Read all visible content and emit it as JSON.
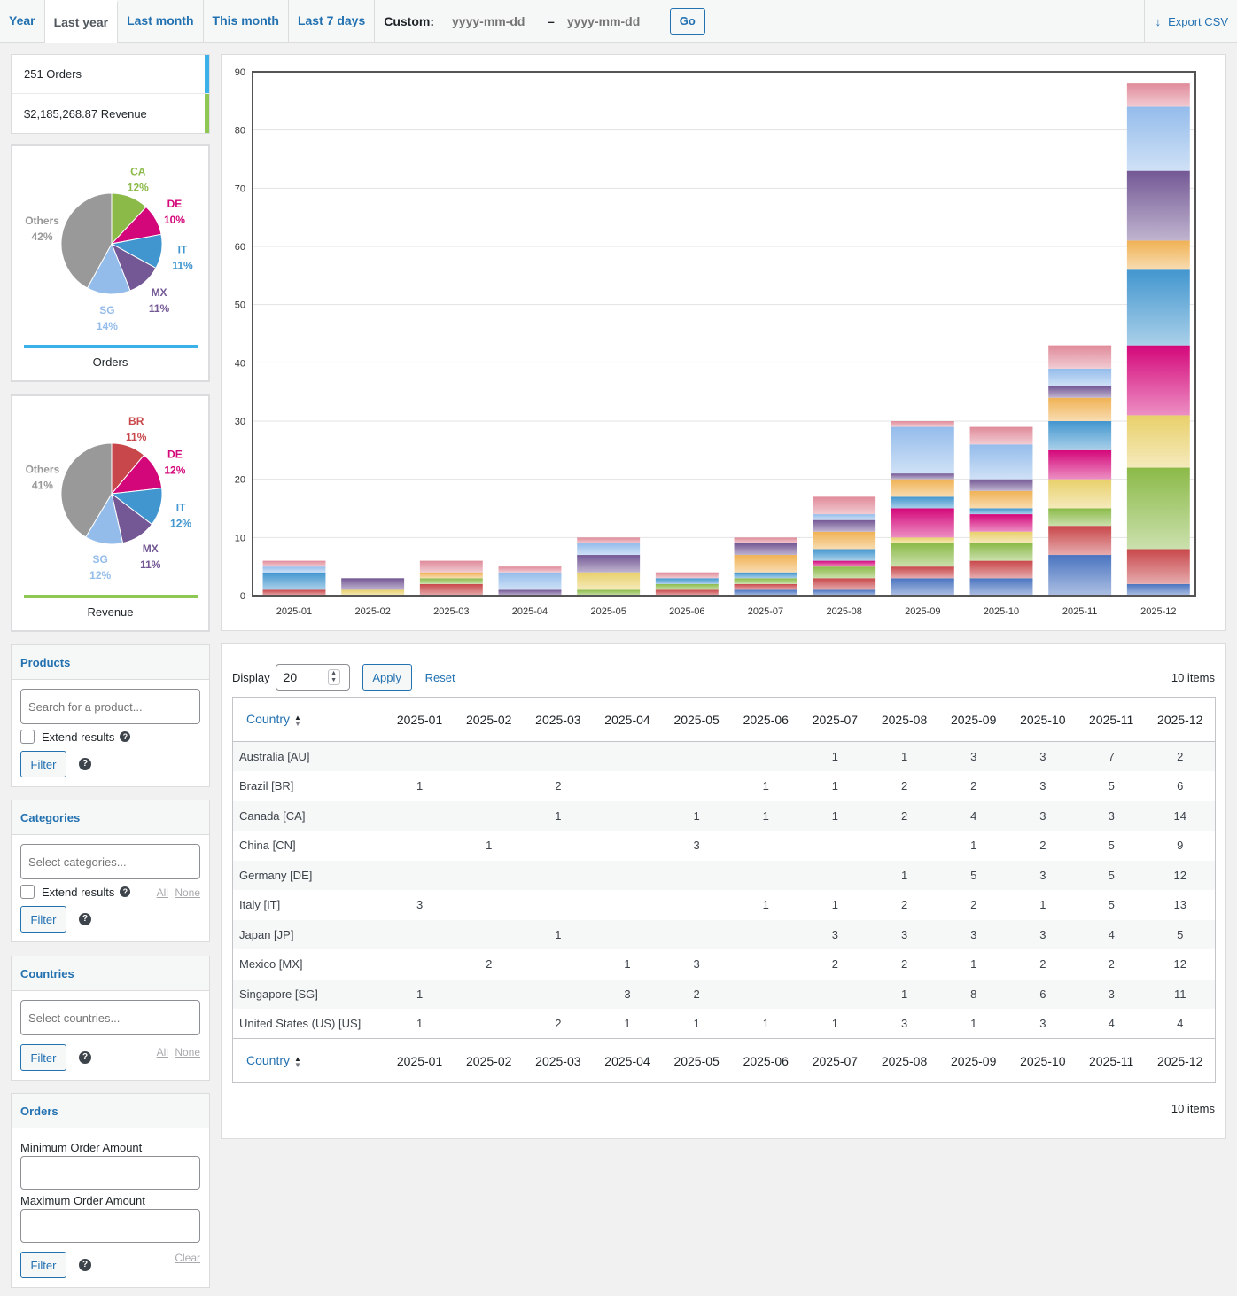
{
  "tabs": [
    "Year",
    "Last year",
    "Last month",
    "This month",
    "Last 7 days"
  ],
  "active_tab": 1,
  "custom": {
    "label": "Custom:",
    "from_placeholder": "yyyy-mm-dd",
    "separator": "–",
    "to_placeholder": "yyyy-mm-dd",
    "go_label": "Go"
  },
  "export_label": "Export CSV",
  "legend": {
    "orders": "251 Orders",
    "revenue": "$2,185,268.87 Revenue",
    "orders_color": "#3ab1e8",
    "revenue_color": "#8fc754"
  },
  "pies": {
    "orders": {
      "caption": "Orders",
      "slices": [
        {
          "label": "CA",
          "pct": "12%",
          "value": 12,
          "color": "#8bba48"
        },
        {
          "label": "DE",
          "pct": "10%",
          "value": 10,
          "color": "#d4077a"
        },
        {
          "label": "IT",
          "pct": "11%",
          "value": 11,
          "color": "#4296cf"
        },
        {
          "label": "MX",
          "pct": "11%",
          "value": 11,
          "color": "#735895"
        },
        {
          "label": "SG",
          "pct": "14%",
          "value": 14,
          "color": "#94bceb"
        },
        {
          "label": "Others",
          "pct": "42%",
          "value": 42,
          "color": "#999999"
        }
      ]
    },
    "revenue": {
      "caption": "Revenue",
      "slices": [
        {
          "label": "BR",
          "pct": "11%",
          "value": 11,
          "color": "#c8474a"
        },
        {
          "label": "DE",
          "pct": "12%",
          "value": 12,
          "color": "#d4077a"
        },
        {
          "label": "IT",
          "pct": "12%",
          "value": 12,
          "color": "#4296cf"
        },
        {
          "label": "MX",
          "pct": "11%",
          "value": 11,
          "color": "#735895"
        },
        {
          "label": "SG",
          "pct": "12%",
          "value": 12,
          "color": "#94bceb"
        },
        {
          "label": "Others",
          "pct": "41%",
          "value": 41,
          "color": "#999999"
        }
      ]
    }
  },
  "filters": {
    "products": {
      "title": "Products",
      "placeholder": "Search for a product...",
      "extend": "Extend results",
      "filter": "Filter"
    },
    "categories": {
      "title": "Categories",
      "placeholder": "Select categories...",
      "extend": "Extend results",
      "filter": "Filter",
      "all": "All",
      "none": "None"
    },
    "countries": {
      "title": "Countries",
      "placeholder": "Select countries...",
      "filter": "Filter",
      "all": "All",
      "none": "None"
    },
    "orders": {
      "title": "Orders",
      "min_label": "Minimum Order Amount",
      "max_label": "Maximum Order Amount",
      "filter": "Filter",
      "clear": "Clear"
    }
  },
  "chart_data": {
    "type": "bar",
    "stacked": true,
    "categories": [
      "2025-01",
      "2025-02",
      "2025-03",
      "2025-04",
      "2025-05",
      "2025-06",
      "2025-07",
      "2025-08",
      "2025-09",
      "2025-10",
      "2025-11",
      "2025-12"
    ],
    "ylim": [
      0,
      90
    ],
    "yticks": [
      0,
      10,
      20,
      30,
      40,
      50,
      60,
      70,
      80,
      90
    ],
    "grid": true,
    "series": [
      {
        "values": [
          0,
          0,
          0,
          0,
          0,
          0,
          1,
          1,
          3,
          3,
          7,
          2
        ],
        "color": "#4a74c0"
      },
      {
        "values": [
          1,
          0,
          2,
          0,
          0,
          1,
          1,
          2,
          2,
          3,
          5,
          6
        ],
        "color": "#c8474a"
      },
      {
        "values": [
          0,
          0,
          1,
          0,
          1,
          1,
          1,
          2,
          4,
          3,
          3,
          14
        ],
        "color": "#8bba48"
      },
      {
        "values": [
          0,
          1,
          0,
          0,
          3,
          0,
          0,
          0,
          1,
          2,
          5,
          9
        ],
        "color": "#e8d06a"
      },
      {
        "values": [
          0,
          0,
          0,
          0,
          0,
          0,
          0,
          1,
          5,
          3,
          5,
          12
        ],
        "color": "#d4077a"
      },
      {
        "values": [
          3,
          0,
          0,
          0,
          0,
          1,
          1,
          2,
          2,
          1,
          5,
          13
        ],
        "color": "#4296cf"
      },
      {
        "values": [
          0,
          0,
          1,
          0,
          0,
          0,
          3,
          3,
          3,
          3,
          4,
          5
        ],
        "color": "#f0b254"
      },
      {
        "values": [
          0,
          2,
          0,
          1,
          3,
          0,
          2,
          2,
          1,
          2,
          2,
          12
        ],
        "color": "#735895"
      },
      {
        "values": [
          1,
          0,
          0,
          3,
          2,
          0,
          0,
          1,
          8,
          6,
          3,
          11
        ],
        "color": "#94bceb"
      },
      {
        "values": [
          1,
          0,
          2,
          1,
          1,
          1,
          1,
          3,
          1,
          3,
          4,
          4
        ],
        "color": "#e08b9a"
      }
    ]
  },
  "table": {
    "display_label": "Display",
    "per_page": "20",
    "apply": "Apply",
    "reset": "Reset",
    "items": "10 items",
    "country_header": "Country",
    "columns": [
      "2025-01",
      "2025-02",
      "2025-03",
      "2025-04",
      "2025-05",
      "2025-06",
      "2025-07",
      "2025-08",
      "2025-09",
      "2025-10",
      "2025-11",
      "2025-12"
    ],
    "rows": [
      {
        "name": "Australia [AU]",
        "cells": [
          "",
          "",
          "",
          "",
          "",
          "",
          "1",
          "1",
          "3",
          "3",
          "7",
          "2"
        ]
      },
      {
        "name": "Brazil [BR]",
        "cells": [
          "1",
          "",
          "2",
          "",
          "",
          "1",
          "1",
          "2",
          "2",
          "3",
          "5",
          "6"
        ]
      },
      {
        "name": "Canada [CA]",
        "cells": [
          "",
          "",
          "1",
          "",
          "1",
          "1",
          "1",
          "2",
          "4",
          "3",
          "3",
          "14"
        ]
      },
      {
        "name": "China [CN]",
        "cells": [
          "",
          "1",
          "",
          "",
          "3",
          "",
          "",
          "",
          "1",
          "2",
          "5",
          "9"
        ]
      },
      {
        "name": "Germany [DE]",
        "cells": [
          "",
          "",
          "",
          "",
          "",
          "",
          "",
          "1",
          "5",
          "3",
          "5",
          "12"
        ]
      },
      {
        "name": "Italy [IT]",
        "cells": [
          "3",
          "",
          "",
          "",
          "",
          "1",
          "1",
          "2",
          "2",
          "1",
          "5",
          "13"
        ]
      },
      {
        "name": "Japan [JP]",
        "cells": [
          "",
          "",
          "1",
          "",
          "",
          "",
          "3",
          "3",
          "3",
          "3",
          "4",
          "5"
        ]
      },
      {
        "name": "Mexico [MX]",
        "cells": [
          "",
          "2",
          "",
          "1",
          "3",
          "",
          "2",
          "2",
          "1",
          "2",
          "2",
          "12"
        ]
      },
      {
        "name": "Singapore [SG]",
        "cells": [
          "1",
          "",
          "",
          "3",
          "2",
          "",
          "",
          "1",
          "8",
          "6",
          "3",
          "11"
        ]
      },
      {
        "name": "United States (US) [US]",
        "cells": [
          "1",
          "",
          "2",
          "1",
          "1",
          "1",
          "1",
          "3",
          "1",
          "3",
          "4",
          "4"
        ]
      }
    ]
  }
}
